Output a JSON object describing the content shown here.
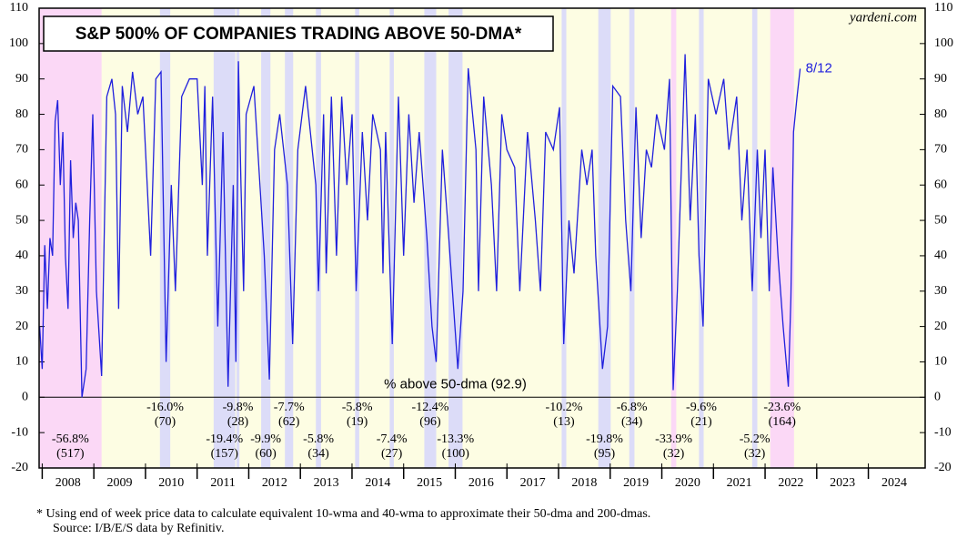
{
  "chart_data": {
    "type": "line",
    "title": "S&P 500% OF COMPANIES TRADING ABOVE 50-DMA*",
    "source_mark": "yardeni.com",
    "line_label": "% above 50-dma (92.9)",
    "end_label": "8/12",
    "footnote": "*   Using end of week price data to calculate equivalent 10-wma and 40-wma to approximate their 50-dma and 200-dmas.",
    "source": "Source: I/B/E/S data by Refinitiv.",
    "color": "#2020dd",
    "background": "#fdfde3",
    "xlim": [
      2007.94,
      2025.1
    ],
    "ylim": [
      -20,
      110
    ],
    "yticks": [
      -20,
      -10,
      0,
      10,
      20,
      30,
      40,
      50,
      60,
      70,
      80,
      90,
      100,
      110
    ],
    "x_labels": [
      2008,
      2009,
      2010,
      2011,
      2012,
      2013,
      2014,
      2015,
      2016,
      2017,
      2018,
      2019,
      2020,
      2021,
      2022,
      2023,
      2024
    ],
    "x": [
      2007.95,
      2008.0,
      2008.05,
      2008.1,
      2008.15,
      2008.2,
      2008.25,
      2008.3,
      2008.35,
      2008.4,
      2008.45,
      2008.5,
      2008.55,
      2008.6,
      2008.65,
      2008.7,
      2008.77,
      2008.85,
      2008.92,
      2008.98,
      2009.05,
      2009.15,
      2009.25,
      2009.35,
      2009.42,
      2009.48,
      2009.55,
      2009.65,
      2009.75,
      2009.85,
      2009.95,
      2010.1,
      2010.2,
      2010.3,
      2010.4,
      2010.5,
      2010.58,
      2010.7,
      2010.85,
      2011.0,
      2011.1,
      2011.15,
      2011.2,
      2011.3,
      2011.4,
      2011.5,
      2011.6,
      2011.7,
      2011.75,
      2011.8,
      2011.85,
      2011.9,
      2011.95,
      2012.1,
      2012.3,
      2012.4,
      2012.5,
      2012.6,
      2012.75,
      2012.85,
      2012.95,
      2013.1,
      2013.3,
      2013.35,
      2013.45,
      2013.5,
      2013.6,
      2013.7,
      2013.8,
      2013.9,
      2014.0,
      2014.08,
      2014.2,
      2014.3,
      2014.4,
      2014.55,
      2014.6,
      2014.65,
      2014.78,
      2014.9,
      2015.0,
      2015.1,
      2015.2,
      2015.3,
      2015.45,
      2015.55,
      2015.63,
      2015.75,
      2015.85,
      2016.05,
      2016.15,
      2016.25,
      2016.4,
      2016.45,
      2016.55,
      2016.7,
      2016.8,
      2016.9,
      2017.0,
      2017.15,
      2017.25,
      2017.4,
      2017.55,
      2017.65,
      2017.75,
      2017.9,
      2018.02,
      2018.1,
      2018.2,
      2018.3,
      2018.45,
      2018.55,
      2018.65,
      2018.72,
      2018.85,
      2018.95,
      2019.05,
      2019.2,
      2019.3,
      2019.4,
      2019.5,
      2019.6,
      2019.7,
      2019.8,
      2019.9,
      2020.05,
      2020.15,
      2020.22,
      2020.3,
      2020.45,
      2020.55,
      2020.65,
      2020.72,
      2020.8,
      2020.9,
      2021.05,
      2021.2,
      2021.3,
      2021.45,
      2021.55,
      2021.65,
      2021.75,
      2021.85,
      2021.92,
      2022.0,
      2022.08,
      2022.15,
      2022.25,
      2022.35,
      2022.45,
      2022.5,
      2022.55,
      2022.62,
      2022.68
    ],
    "values": [
      20,
      8,
      43,
      25,
      45,
      40,
      78,
      84,
      60,
      75,
      40,
      25,
      67,
      45,
      55,
      50,
      0,
      8,
      50,
      80,
      30,
      6,
      85,
      90,
      80,
      25,
      88,
      75,
      92,
      80,
      85,
      40,
      90,
      92,
      10,
      60,
      30,
      85,
      90,
      90,
      60,
      88,
      40,
      85,
      20,
      75,
      3,
      60,
      10,
      95,
      60,
      30,
      80,
      88,
      40,
      5,
      70,
      80,
      60,
      15,
      70,
      88,
      60,
      30,
      80,
      35,
      85,
      40,
      85,
      60,
      80,
      30,
      75,
      50,
      80,
      70,
      35,
      75,
      15,
      85,
      40,
      80,
      55,
      75,
      45,
      20,
      10,
      70,
      50,
      8,
      30,
      93,
      70,
      30,
      85,
      60,
      30,
      80,
      70,
      65,
      30,
      75,
      50,
      30,
      75,
      70,
      82,
      15,
      50,
      35,
      70,
      60,
      70,
      40,
      8,
      20,
      88,
      85,
      50,
      30,
      82,
      45,
      70,
      65,
      80,
      70,
      90,
      2,
      30,
      97,
      50,
      80,
      40,
      20,
      90,
      80,
      90,
      70,
      85,
      50,
      70,
      30,
      70,
      45,
      70,
      30,
      65,
      40,
      20,
      3,
      28,
      75,
      85,
      92.9
    ],
    "bands": [
      {
        "start": 2007.94,
        "end": 2009.15,
        "color": "#fbd8f6",
        "decline": "-56.8%",
        "days": "(517)"
      },
      {
        "start": 2010.28,
        "end": 2010.48,
        "color": "#dcdcf8",
        "decline": "-16.0%",
        "days": "(70)"
      },
      {
        "start": 2011.32,
        "end": 2011.74,
        "color": "#dcdcf8",
        "decline": "-19.4%",
        "days": "(157)"
      },
      {
        "start": 2011.76,
        "end": 2011.82,
        "color": "#dcdcf8",
        "decline": "-9.8%",
        "days": "(28)"
      },
      {
        "start": 2012.24,
        "end": 2012.42,
        "color": "#dcdcf8",
        "decline": "-9.9%",
        "days": "(60)"
      },
      {
        "start": 2012.7,
        "end": 2012.86,
        "color": "#dcdcf8",
        "decline": "-7.7%",
        "days": "(62)"
      },
      {
        "start": 2013.3,
        "end": 2013.4,
        "color": "#dcdcf8",
        "decline": "-5.8%",
        "days": "(34)"
      },
      {
        "start": 2014.06,
        "end": 2014.14,
        "color": "#dcdcf8",
        "decline": "-5.8%",
        "days": "(19)"
      },
      {
        "start": 2014.73,
        "end": 2014.81,
        "color": "#dcdcf8",
        "decline": "-7.4%",
        "days": "(27)"
      },
      {
        "start": 2015.4,
        "end": 2015.63,
        "color": "#dcdcf8",
        "decline": "-12.4%",
        "days": "(96)"
      },
      {
        "start": 2015.87,
        "end": 2016.14,
        "color": "#dcdcf8",
        "decline": "-13.3%",
        "days": "(100)"
      },
      {
        "start": 2018.06,
        "end": 2018.15,
        "color": "#dcdcf8",
        "decline": "-10.2%",
        "days": "(13)"
      },
      {
        "start": 2018.77,
        "end": 2019.01,
        "color": "#dcdcf8",
        "decline": "-19.8%",
        "days": "(95)"
      },
      {
        "start": 2019.37,
        "end": 2019.47,
        "color": "#dcdcf8",
        "decline": "-6.8%",
        "days": "(34)"
      },
      {
        "start": 2020.18,
        "end": 2020.28,
        "color": "#fbd8f6",
        "decline": "-33.9%",
        "days": "(32)"
      },
      {
        "start": 2020.72,
        "end": 2020.81,
        "color": "#dcdcf8",
        "decline": "-9.6%",
        "days": "(21)"
      },
      {
        "start": 2021.75,
        "end": 2021.85,
        "color": "#dcdcf8",
        "decline": "-5.2%",
        "days": "(32)"
      },
      {
        "start": 2022.1,
        "end": 2022.56,
        "color": "#fbd8f6",
        "decline": "-23.6%",
        "days": "(164)"
      }
    ]
  }
}
